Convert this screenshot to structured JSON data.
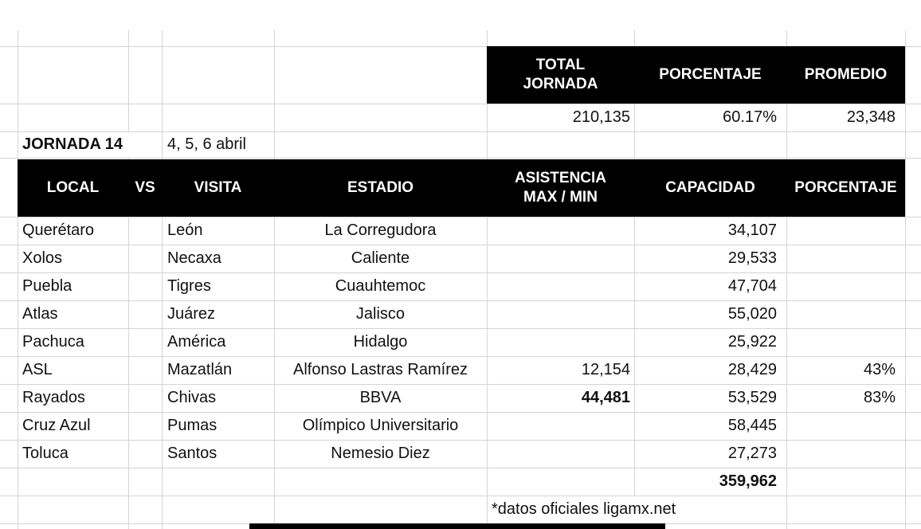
{
  "colors": {
    "header_bg": "#000000",
    "header_text": "#ffffff",
    "gridline": "#d4d4d4",
    "text": "#111111",
    "background": "#ffffff"
  },
  "summary": {
    "total_label": "TOTAL\nJORNADA",
    "porcentaje_label": "PORCENTAJE",
    "promedio_label": "PROMEDIO",
    "total_value": "210,135",
    "porcentaje_value": "60.17%",
    "promedio_value": "23,348"
  },
  "jornada": {
    "title": "JORNADA 14",
    "dates": "4, 5, 6 abril"
  },
  "match_table": {
    "headers": {
      "local": "LOCAL",
      "vs": "VS",
      "visita": "VISITA",
      "estadio": "ESTADIO",
      "asistencia": "ASISTENCIA\nMAX / MIN",
      "capacidad": "CAPACIDAD",
      "porcentaje": "PORCENTAJE"
    },
    "rows": [
      {
        "local": "Querétaro",
        "visita": "León",
        "estadio": "La Corregudora",
        "asistencia": "",
        "capacidad": "34,107",
        "porcentaje": ""
      },
      {
        "local": "Xolos",
        "visita": "Necaxa",
        "estadio": "Caliente",
        "asistencia": "",
        "capacidad": "29,533",
        "porcentaje": ""
      },
      {
        "local": "Puebla",
        "visita": "Tigres",
        "estadio": "Cuauhtemoc",
        "asistencia": "",
        "capacidad": "47,704",
        "porcentaje": ""
      },
      {
        "local": "Atlas",
        "visita": "Juárez",
        "estadio": "Jalisco",
        "asistencia": "",
        "capacidad": "55,020",
        "porcentaje": ""
      },
      {
        "local": "Pachuca",
        "visita": "América",
        "estadio": "Hidalgo",
        "asistencia": "",
        "capacidad": "25,922",
        "porcentaje": ""
      },
      {
        "local": "ASL",
        "visita": "Mazatlán",
        "estadio": "Alfonso Lastras Ramírez",
        "asistencia": "12,154",
        "capacidad": "28,429",
        "porcentaje": "43%"
      },
      {
        "local": "Rayados",
        "visita": "Chivas",
        "estadio": "BBVA",
        "asistencia": "44,481",
        "capacidad": "53,529",
        "porcentaje": "83%"
      },
      {
        "local": "Cruz Azul",
        "visita": "Pumas",
        "estadio": "Olímpico Universitario",
        "asistencia": "",
        "capacidad": "58,445",
        "porcentaje": ""
      },
      {
        "local": "Toluca",
        "visita": "Santos",
        "estadio": "Nemesio Diez",
        "asistencia": "",
        "capacidad": "27,273",
        "porcentaje": ""
      }
    ],
    "total_capacidad": "359,962",
    "footnote": "*datos oficiales ligamx.net"
  }
}
